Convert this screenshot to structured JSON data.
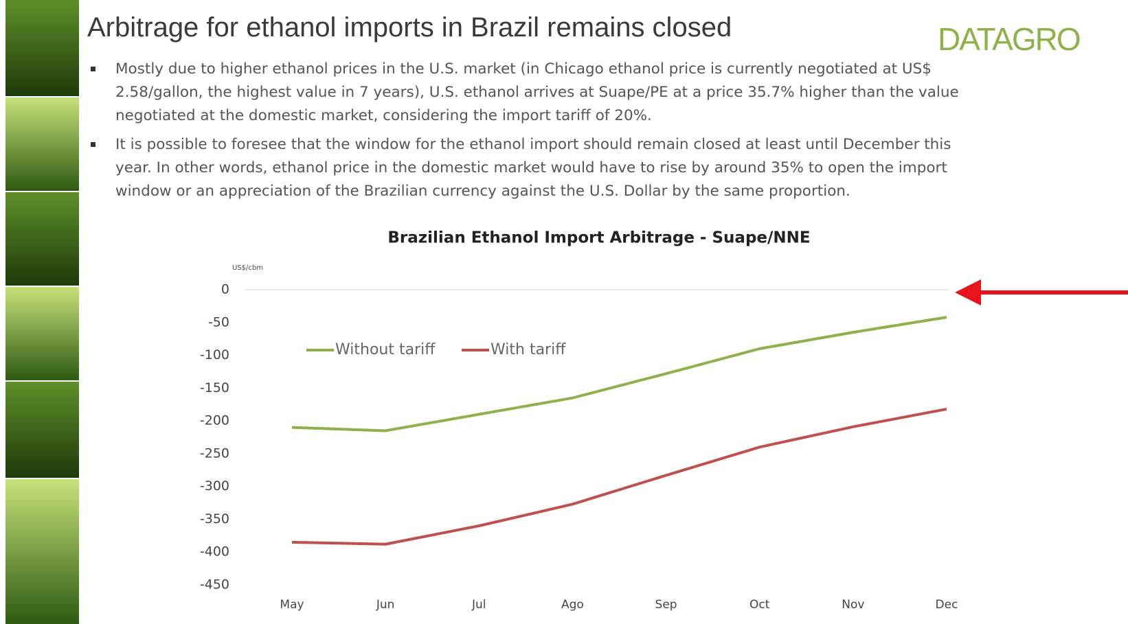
{
  "header": {
    "title": "Arbitrage for ethanol imports in Brazil remains closed",
    "logo": "DATAGRO"
  },
  "bullets": [
    "Mostly due to higher ethanol prices in the U.S. market (in Chicago ethanol price is currently negotiated at US$ 2.58/gallon, the highest value in 7 years), U.S. ethanol arrives at Suape/PE at a price 35.7% higher than the value negotiated at the domestic market, considering the import tariff of 20%.",
    "It is possible to foresee that the window for the ethanol import should remain closed at least until December this year. In other words, ethanol price in the domestic market would have to rise by around 35% to open the import window or an appreciation of the Brazilian currency against the U.S. Dollar by the same proportion."
  ],
  "chart_data": {
    "type": "line",
    "title": "Brazilian Ethanol Import Arbitrage - Suape/NNE",
    "y_unit": "US$/cbm",
    "categories": [
      "May",
      "Jun",
      "Jul",
      "Ago",
      "Sep",
      "Oct",
      "Nov",
      "Dec"
    ],
    "series": [
      {
        "name": "Without tariff",
        "color": "#8fb04a",
        "values": [
          -210,
          -215,
          -190,
          -165,
          -128,
          -90,
          -65,
          -42
        ]
      },
      {
        "name": "With tariff",
        "color": "#c0504d",
        "values": [
          -385,
          -388,
          -360,
          -327,
          -283,
          -240,
          -209,
          -182
        ]
      }
    ],
    "ylim": [
      -450,
      0
    ],
    "yticks": [
      0,
      -50,
      -100,
      -150,
      -200,
      -250,
      -300,
      -350,
      -400,
      -450
    ],
    "grid": true
  }
}
